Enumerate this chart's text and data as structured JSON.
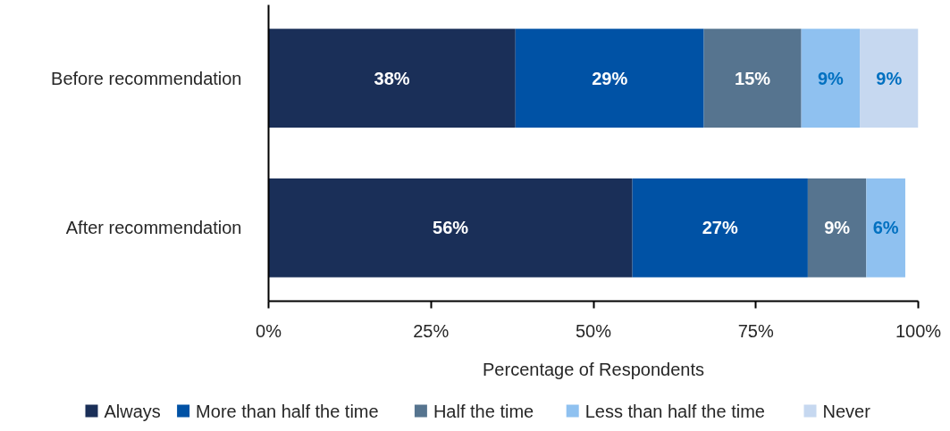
{
  "chart_data": {
    "type": "bar",
    "orientation": "horizontal",
    "stacked": true,
    "categories": [
      "Before recommendation",
      "After recommendation"
    ],
    "xlabel": "Percentage of Respondents",
    "xlim": [
      0,
      100
    ],
    "xticks": [
      {
        "value": 0,
        "label": "0%"
      },
      {
        "value": 25,
        "label": "25%"
      },
      {
        "value": 50,
        "label": "50%"
      },
      {
        "value": 75,
        "label": "75%"
      },
      {
        "value": 100,
        "label": "100%"
      }
    ],
    "series": [
      {
        "name": "Always",
        "color": "#1a2f58",
        "values": [
          38,
          56
        ],
        "value_labels": [
          "38%",
          "56%"
        ]
      },
      {
        "name": "More than half the time",
        "color": "#0052a5",
        "values": [
          29,
          27
        ],
        "value_labels": [
          "29%",
          "27%"
        ]
      },
      {
        "name": "Half the time",
        "color": "#56748f",
        "values": [
          15,
          9
        ],
        "value_labels": [
          "15%",
          "9%"
        ]
      },
      {
        "name": "Less than half the time",
        "color": "#8fc1f0",
        "values": [
          9,
          6
        ],
        "value_labels": [
          "9%",
          "6%"
        ]
      },
      {
        "name": "Never",
        "color": "#c6d8f0",
        "values": [
          9,
          null
        ],
        "value_labels": [
          "9%",
          null
        ]
      }
    ],
    "grid": false,
    "legend": "bottom"
  }
}
